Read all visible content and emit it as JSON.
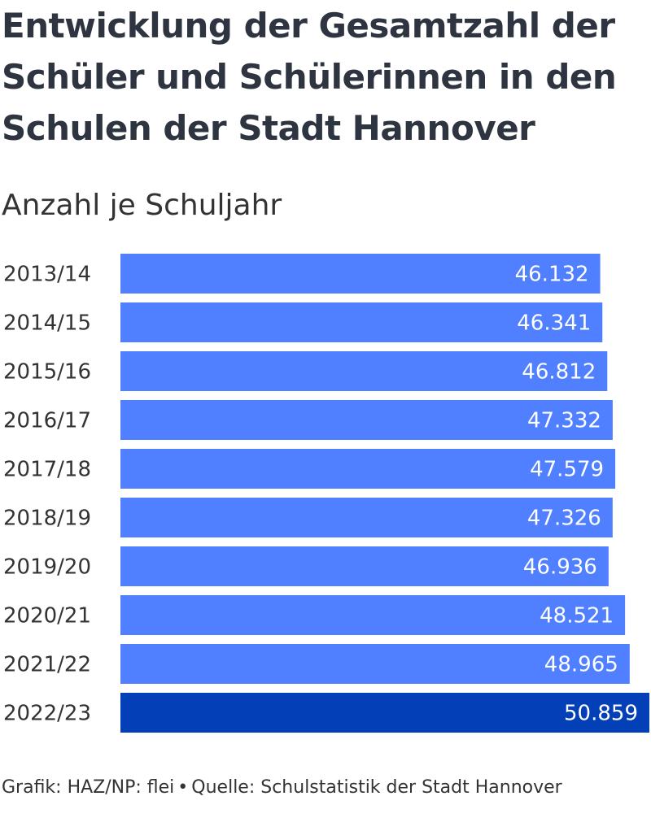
{
  "chart_data": {
    "type": "bar",
    "orientation": "horizontal",
    "title": "Entwicklung der Gesamtzahl der Schüler und Schülerinnen in den Schulen der Stadt Hannover",
    "subtitle": "Anzahl je Schuljahr",
    "categories": [
      "2013/14",
      "2014/15",
      "2015/16",
      "2016/17",
      "2017/18",
      "2018/19",
      "2019/20",
      "2020/21",
      "2021/22",
      "2022/23"
    ],
    "values": [
      46132,
      46341,
      46812,
      47332,
      47579,
      47326,
      46936,
      48521,
      48965,
      50859
    ],
    "value_labels": [
      "46.132",
      "46.341",
      "46.812",
      "47.332",
      "47.579",
      "47.326",
      "46.936",
      "48.521",
      "48.965",
      "50.859"
    ],
    "xlim": [
      0,
      50859
    ],
    "highlight_category": "2022/23",
    "colors": {
      "bar": "#5080ff",
      "highlight": "#0340b8",
      "label": "#ffffff"
    }
  },
  "footer": {
    "credit": "Grafik: HAZ/NP: flei",
    "separator": "•",
    "source": "Quelle: Schulstatistik der Stadt Hannover"
  }
}
